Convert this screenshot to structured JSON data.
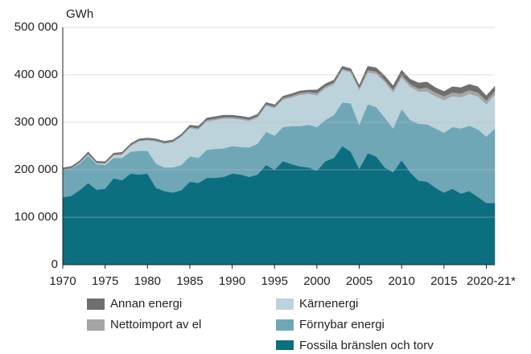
{
  "chart_data": {
    "type": "stacked_area",
    "y_label": "GWh",
    "x": [
      1970,
      1971,
      1972,
      1973,
      1974,
      1975,
      1976,
      1977,
      1978,
      1979,
      1980,
      1981,
      1982,
      1983,
      1984,
      1985,
      1986,
      1987,
      1988,
      1989,
      1990,
      1991,
      1992,
      1993,
      1994,
      1995,
      1996,
      1997,
      1998,
      1999,
      2000,
      2001,
      2002,
      2003,
      2004,
      2005,
      2006,
      2007,
      2008,
      2009,
      2010,
      2011,
      2012,
      2013,
      2014,
      2015,
      2016,
      2017,
      2018,
      2019,
      2020,
      2021
    ],
    "xlim": [
      1970,
      2021
    ],
    "xticks": [
      1970,
      1975,
      1980,
      1985,
      1990,
      1995,
      2000,
      2005,
      2010,
      2015,
      {
        "value": 2020,
        "label": "2020-21*"
      }
    ],
    "ylim": [
      0,
      500000
    ],
    "yticks": [
      0,
      {
        "value": 100000,
        "label": "100 000"
      },
      {
        "value": 200000,
        "label": "200 000"
      },
      {
        "value": 300000,
        "label": "300 000"
      },
      {
        "value": 400000,
        "label": "400 000"
      },
      {
        "value": 500000,
        "label": "500 000"
      }
    ],
    "grid": true,
    "series": [
      {
        "name": "Fossila bränslen och torv",
        "color": "#0b6f80",
        "values": [
          142000,
          145000,
          157000,
          172000,
          158000,
          160000,
          182000,
          178000,
          192000,
          190000,
          192000,
          162000,
          155000,
          152000,
          157000,
          175000,
          172000,
          183000,
          183000,
          185000,
          192000,
          190000,
          185000,
          190000,
          210000,
          200000,
          218000,
          212000,
          207000,
          205000,
          198000,
          218000,
          225000,
          250000,
          238000,
          202000,
          235000,
          228000,
          205000,
          195000,
          220000,
          195000,
          177000,
          175000,
          162000,
          152000,
          160000,
          150000,
          155000,
          143000,
          130000,
          130000
        ]
      },
      {
        "name": "Förnybar energi",
        "color": "#6fa7b7",
        "values": [
          58000,
          58000,
          56000,
          58000,
          54000,
          50000,
          43000,
          47000,
          46000,
          50000,
          48000,
          51000,
          50000,
          53000,
          53000,
          53000,
          53000,
          59000,
          61000,
          60000,
          58000,
          58000,
          62000,
          65000,
          70000,
          72000,
          72000,
          80000,
          85000,
          90000,
          92000,
          87000,
          90000,
          92000,
          102000,
          93000,
          103000,
          104000,
          105000,
          92000,
          108000,
          110000,
          120000,
          121000,
          125000,
          126000,
          130000,
          137000,
          138000,
          142000,
          140000,
          157000
        ]
      },
      {
        "name": "Kärnenergi",
        "color": "#bcd3dc",
        "values": [
          0,
          0,
          2000,
          2000,
          2000,
          3000,
          5000,
          7000,
          12000,
          20000,
          22000,
          47000,
          50000,
          53000,
          60000,
          60000,
          60000,
          60000,
          61000,
          63000,
          58000,
          58000,
          56000,
          55000,
          55000,
          58000,
          58000,
          60000,
          66000,
          65000,
          67000,
          67000,
          65000,
          68000,
          65000,
          73000,
          67000,
          70000,
          75000,
          76000,
          67000,
          70000,
          68000,
          69000,
          68000,
          69000,
          65000,
          66000,
          67000,
          70000,
          68000,
          71000
        ]
      },
      {
        "name": "Nettoimport av el",
        "color": "#a5a5a5",
        "values": [
          1000,
          1000,
          1000,
          2000,
          1000,
          1000,
          2000,
          2000,
          2000,
          2000,
          2000,
          2000,
          2000,
          2000,
          2000,
          2000,
          3000,
          3000,
          3000,
          3000,
          3000,
          3000,
          3000,
          3000,
          3000,
          3000,
          3000,
          4000,
          4000,
          4000,
          5000,
          4000,
          4000,
          3000,
          3000,
          5000,
          5000,
          5000,
          5000,
          6000,
          5000,
          6000,
          6000,
          8000,
          8000,
          8000,
          8000,
          8000,
          8000,
          8000,
          8000,
          8000
        ]
      },
      {
        "name": "Annan energi",
        "color": "#6f6f6f",
        "values": [
          3000,
          3000,
          3000,
          4000,
          3000,
          3000,
          3000,
          3000,
          3000,
          3000,
          3000,
          3000,
          3000,
          3000,
          3000,
          4000,
          4000,
          4000,
          4000,
          4000,
          4000,
          4000,
          4000,
          4000,
          4000,
          4000,
          4000,
          4000,
          4000,
          4000,
          6000,
          5000,
          5000,
          5000,
          5000,
          5000,
          8000,
          8000,
          8000,
          8000,
          10000,
          10000,
          12000,
          12000,
          10000,
          10000,
          12000,
          12000,
          12000,
          12000,
          10000,
          10000
        ]
      }
    ]
  }
}
